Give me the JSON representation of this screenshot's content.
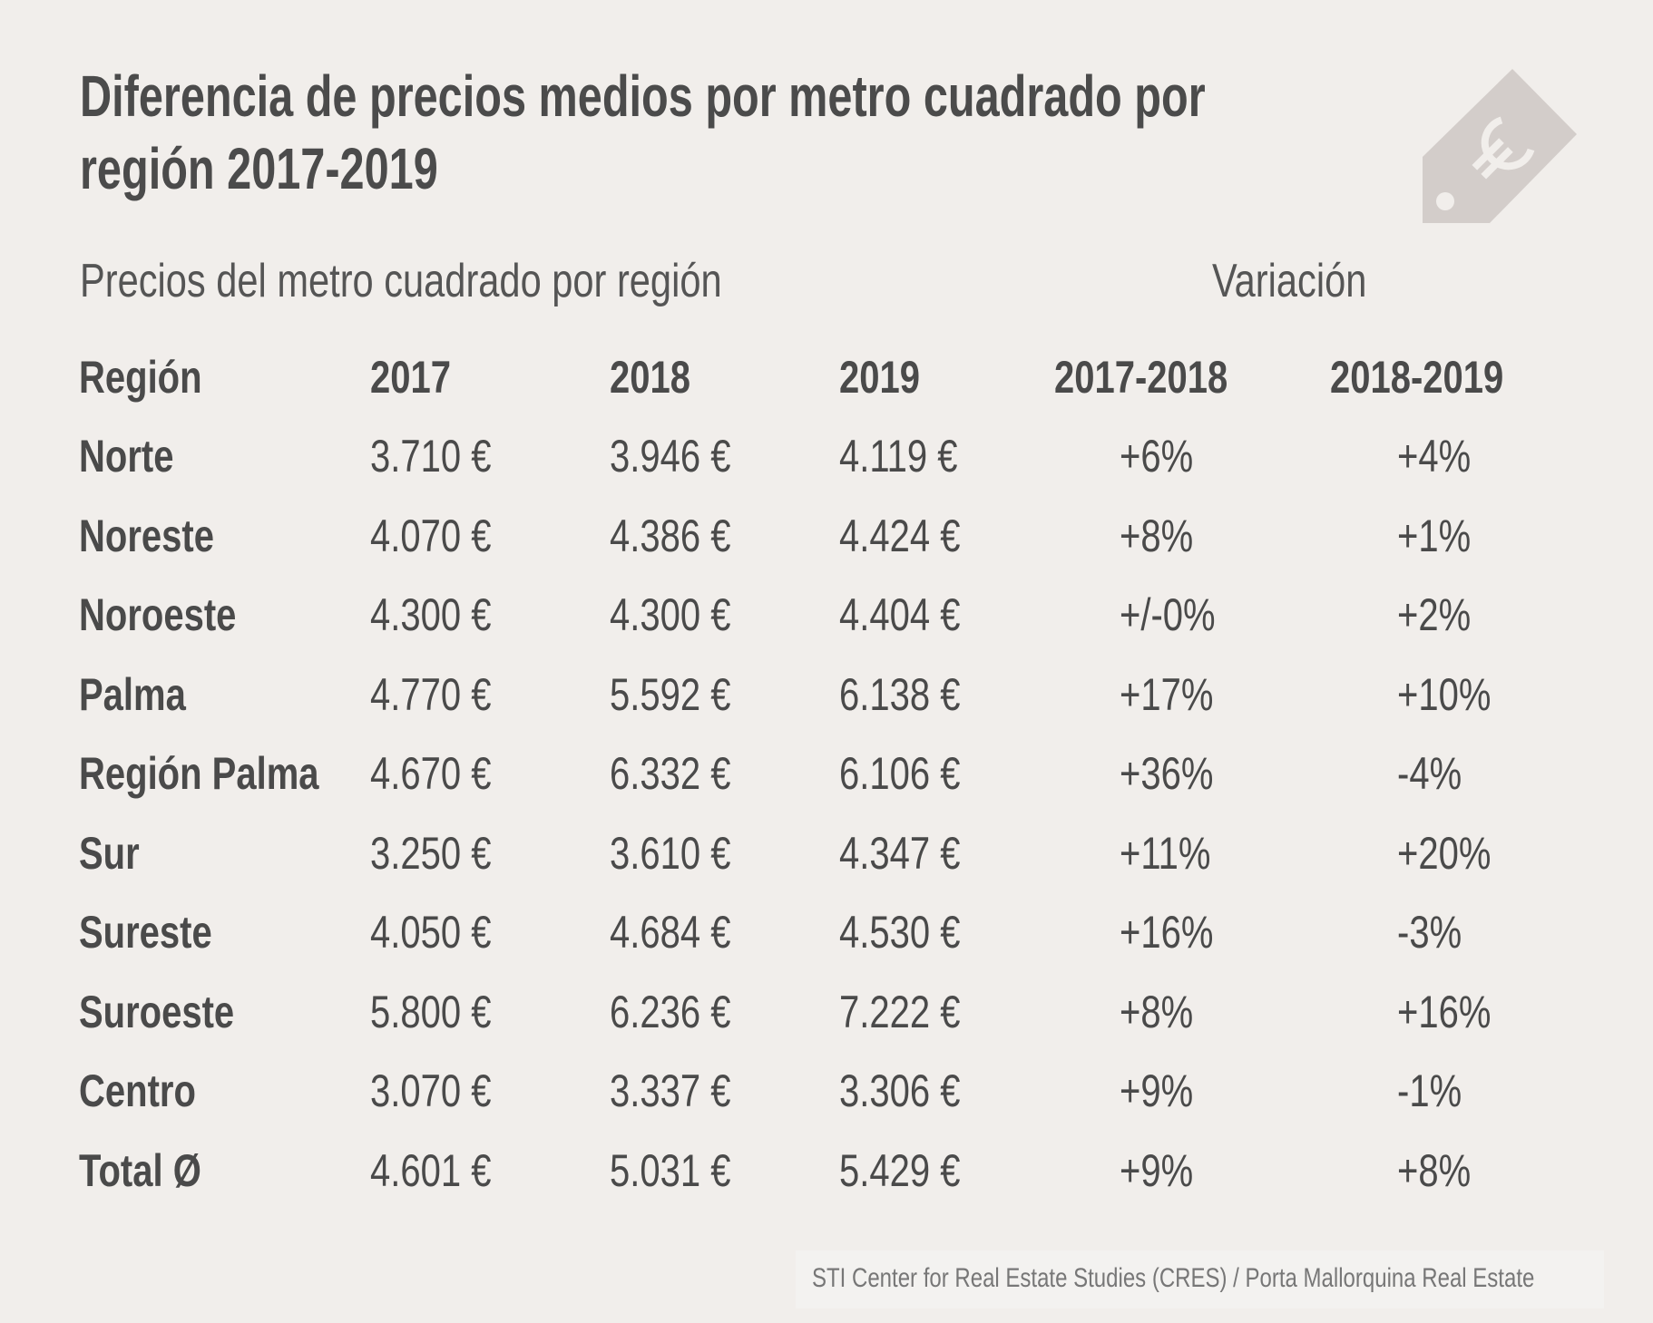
{
  "title": "Diferencia de precios medios por metro cuadrado por región 2017-2019",
  "subtitle_left": "Precios del metro cuadrado por región",
  "subtitle_right": "Variación",
  "columns": [
    "Región",
    "2017",
    "2018",
    "2019",
    "2017-2018",
    "2018-2019"
  ],
  "rows": [
    [
      "Norte",
      "3.710 €",
      "3.946 €",
      "4.119 €",
      "+6%",
      "+4%"
    ],
    [
      "Noreste",
      "4.070 €",
      "4.386 €",
      "4.424 €",
      "+8%",
      "+1%"
    ],
    [
      "Noroeste",
      "4.300 €",
      "4.300 €",
      "4.404 €",
      "+/-0%",
      "+2%"
    ],
    [
      "Palma",
      "4.770 €",
      "5.592 €",
      "6.138 €",
      "+17%",
      "+10%"
    ],
    [
      "Región Palma",
      "4.670 €",
      "6.332 €",
      "6.106 €",
      "+36%",
      "-4%"
    ],
    [
      "Sur",
      "3.250 €",
      "3.610 €",
      "4.347 €",
      "+11%",
      "+20%"
    ],
    [
      "Sureste",
      "4.050 €",
      "4.684 €",
      "4.530 €",
      "+16%",
      "-3%"
    ],
    [
      "Suroeste",
      "5.800 €",
      "6.236 €",
      "7.222 €",
      "+8%",
      "+16%"
    ],
    [
      "Centro",
      "3.070 €",
      "3.337 €",
      "3.306 €",
      "+9%",
      "-1%"
    ],
    [
      "Total Ø",
      "4.601 €",
      "5.031 €",
      "5.429 €",
      "+9%",
      "+8%"
    ]
  ],
  "footer": "STI Center for Real Estate Studies (CRES) / Porta Mallorquina Real Estate",
  "icon": "euro-price-tag-icon",
  "colors": {
    "background": "#f1eeeb",
    "text": "#4a4a4a",
    "tag": "#d3cdca"
  }
}
